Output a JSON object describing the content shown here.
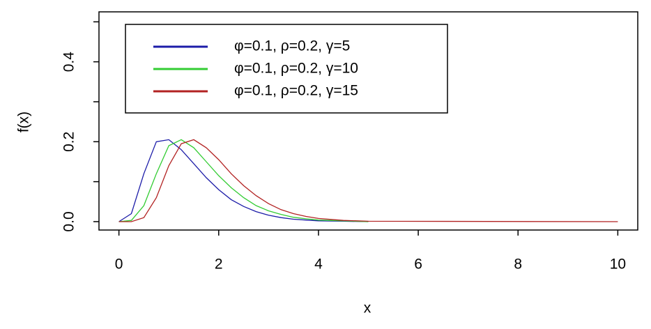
{
  "chart_data": {
    "type": "line",
    "x_label": "x",
    "y_label": "f(x)",
    "xlim": [
      -0.4,
      10.4
    ],
    "ylim": [
      -0.021,
      0.525
    ],
    "xticks": [
      0,
      2,
      4,
      6,
      8,
      10
    ],
    "yticks": [
      {
        "value": 0,
        "label": "0.0"
      },
      0.2,
      0.4
    ],
    "yminorticks": [
      0.1,
      0.3,
      0.5
    ],
    "legend": "top-left",
    "series": [
      {
        "name": "φ=0.1, ρ=0.2, γ=5",
        "color": "#1c1ca8",
        "x": [
          0,
          0.25,
          0.5,
          0.75,
          1,
          1.25,
          1.5,
          1.75,
          2,
          2.25,
          2.5,
          2.75,
          3,
          3.25,
          3.5,
          3.75,
          4,
          4.5,
          5
        ],
        "values": [
          0,
          0.02,
          0.12,
          0.2,
          0.205,
          0.18,
          0.145,
          0.11,
          0.08,
          0.055,
          0.038,
          0.025,
          0.016,
          0.01,
          0.006,
          0.004,
          0.002,
          0.001,
          0
        ]
      },
      {
        "name": "φ=0.1, ρ=0.2, γ=10",
        "color": "#33cc33",
        "x": [
          0,
          0.25,
          0.5,
          0.75,
          1,
          1.25,
          1.5,
          1.75,
          2,
          2.25,
          2.5,
          2.75,
          3,
          3.25,
          3.5,
          3.75,
          4,
          4.5,
          5
        ],
        "values": [
          0,
          0.003,
          0.04,
          0.12,
          0.19,
          0.205,
          0.185,
          0.15,
          0.115,
          0.085,
          0.06,
          0.04,
          0.027,
          0.018,
          0.011,
          0.007,
          0.004,
          0.002,
          0
        ]
      },
      {
        "name": "φ=0.1, ρ=0.2, γ=15",
        "color": "#b22222",
        "x": [
          0,
          0.25,
          0.5,
          0.75,
          1,
          1.25,
          1.5,
          1.75,
          2,
          2.25,
          2.5,
          2.75,
          3,
          3.25,
          3.5,
          3.75,
          4,
          4.5,
          5,
          10
        ],
        "values": [
          0,
          0,
          0.01,
          0.06,
          0.14,
          0.195,
          0.205,
          0.185,
          0.155,
          0.12,
          0.09,
          0.065,
          0.045,
          0.03,
          0.02,
          0.013,
          0.008,
          0.003,
          0.001,
          0
        ]
      }
    ]
  }
}
